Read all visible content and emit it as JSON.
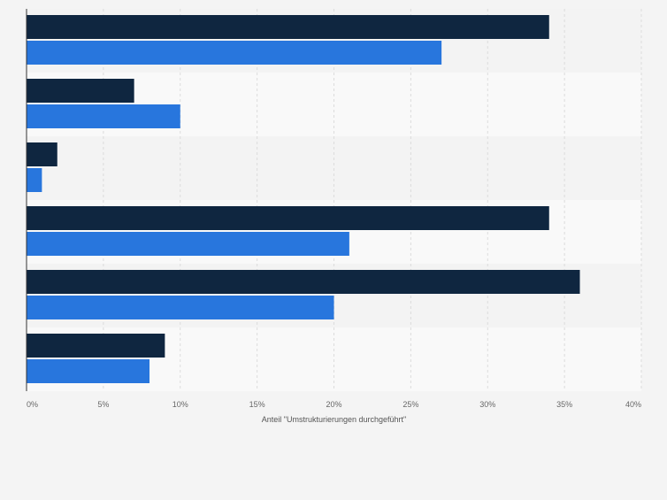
{
  "chart_data": {
    "type": "bar",
    "orientation": "horizontal",
    "categories": [
      "",
      "",
      "",
      "",
      "",
      ""
    ],
    "series": [
      {
        "values": [
          34,
          7,
          2,
          34,
          36,
          9
        ],
        "color": "#0f2640"
      },
      {
        "values": [
          27,
          10,
          1,
          21,
          20,
          8
        ],
        "color": "#2876dd"
      }
    ],
    "xlim": [
      0,
      40
    ],
    "x_ticks": [
      0,
      5,
      10,
      15,
      20,
      25,
      30,
      35,
      40
    ],
    "x_tick_labels": [
      "0%",
      "5%",
      "10%",
      "15%",
      "20%",
      "25%",
      "30%",
      "35%",
      "40%"
    ],
    "xlabel": "Anteil \"Umstrukturierungen durchgeführt\"",
    "grid": true,
    "legend": "none"
  }
}
